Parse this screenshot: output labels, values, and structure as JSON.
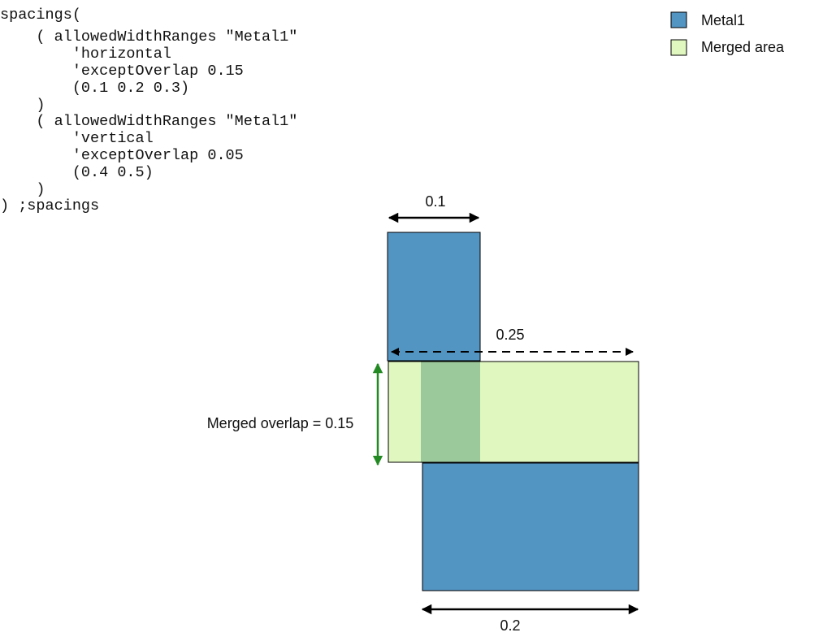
{
  "code": {
    "lines": [
      "spacings(",
      "    ( allowedWidthRanges \"Metal1\"",
      "        'horizontal",
      "        'exceptOverlap 0.15",
      "        (0.1 0.2 0.3)",
      "    )",
      "    ( allowedWidthRanges \"Metal1\"",
      "        'vertical",
      "        'exceptOverlap 0.05",
      "        (0.4 0.5)",
      "    )",
      ") ;spacings"
    ]
  },
  "legend": {
    "items": [
      "Metal1",
      "Merged area"
    ]
  },
  "diagram": {
    "top_width": "0.1",
    "span_width": "0.25",
    "merged_overlap": "Merged overlap = 0.15",
    "bottom_width": "0.2"
  }
}
